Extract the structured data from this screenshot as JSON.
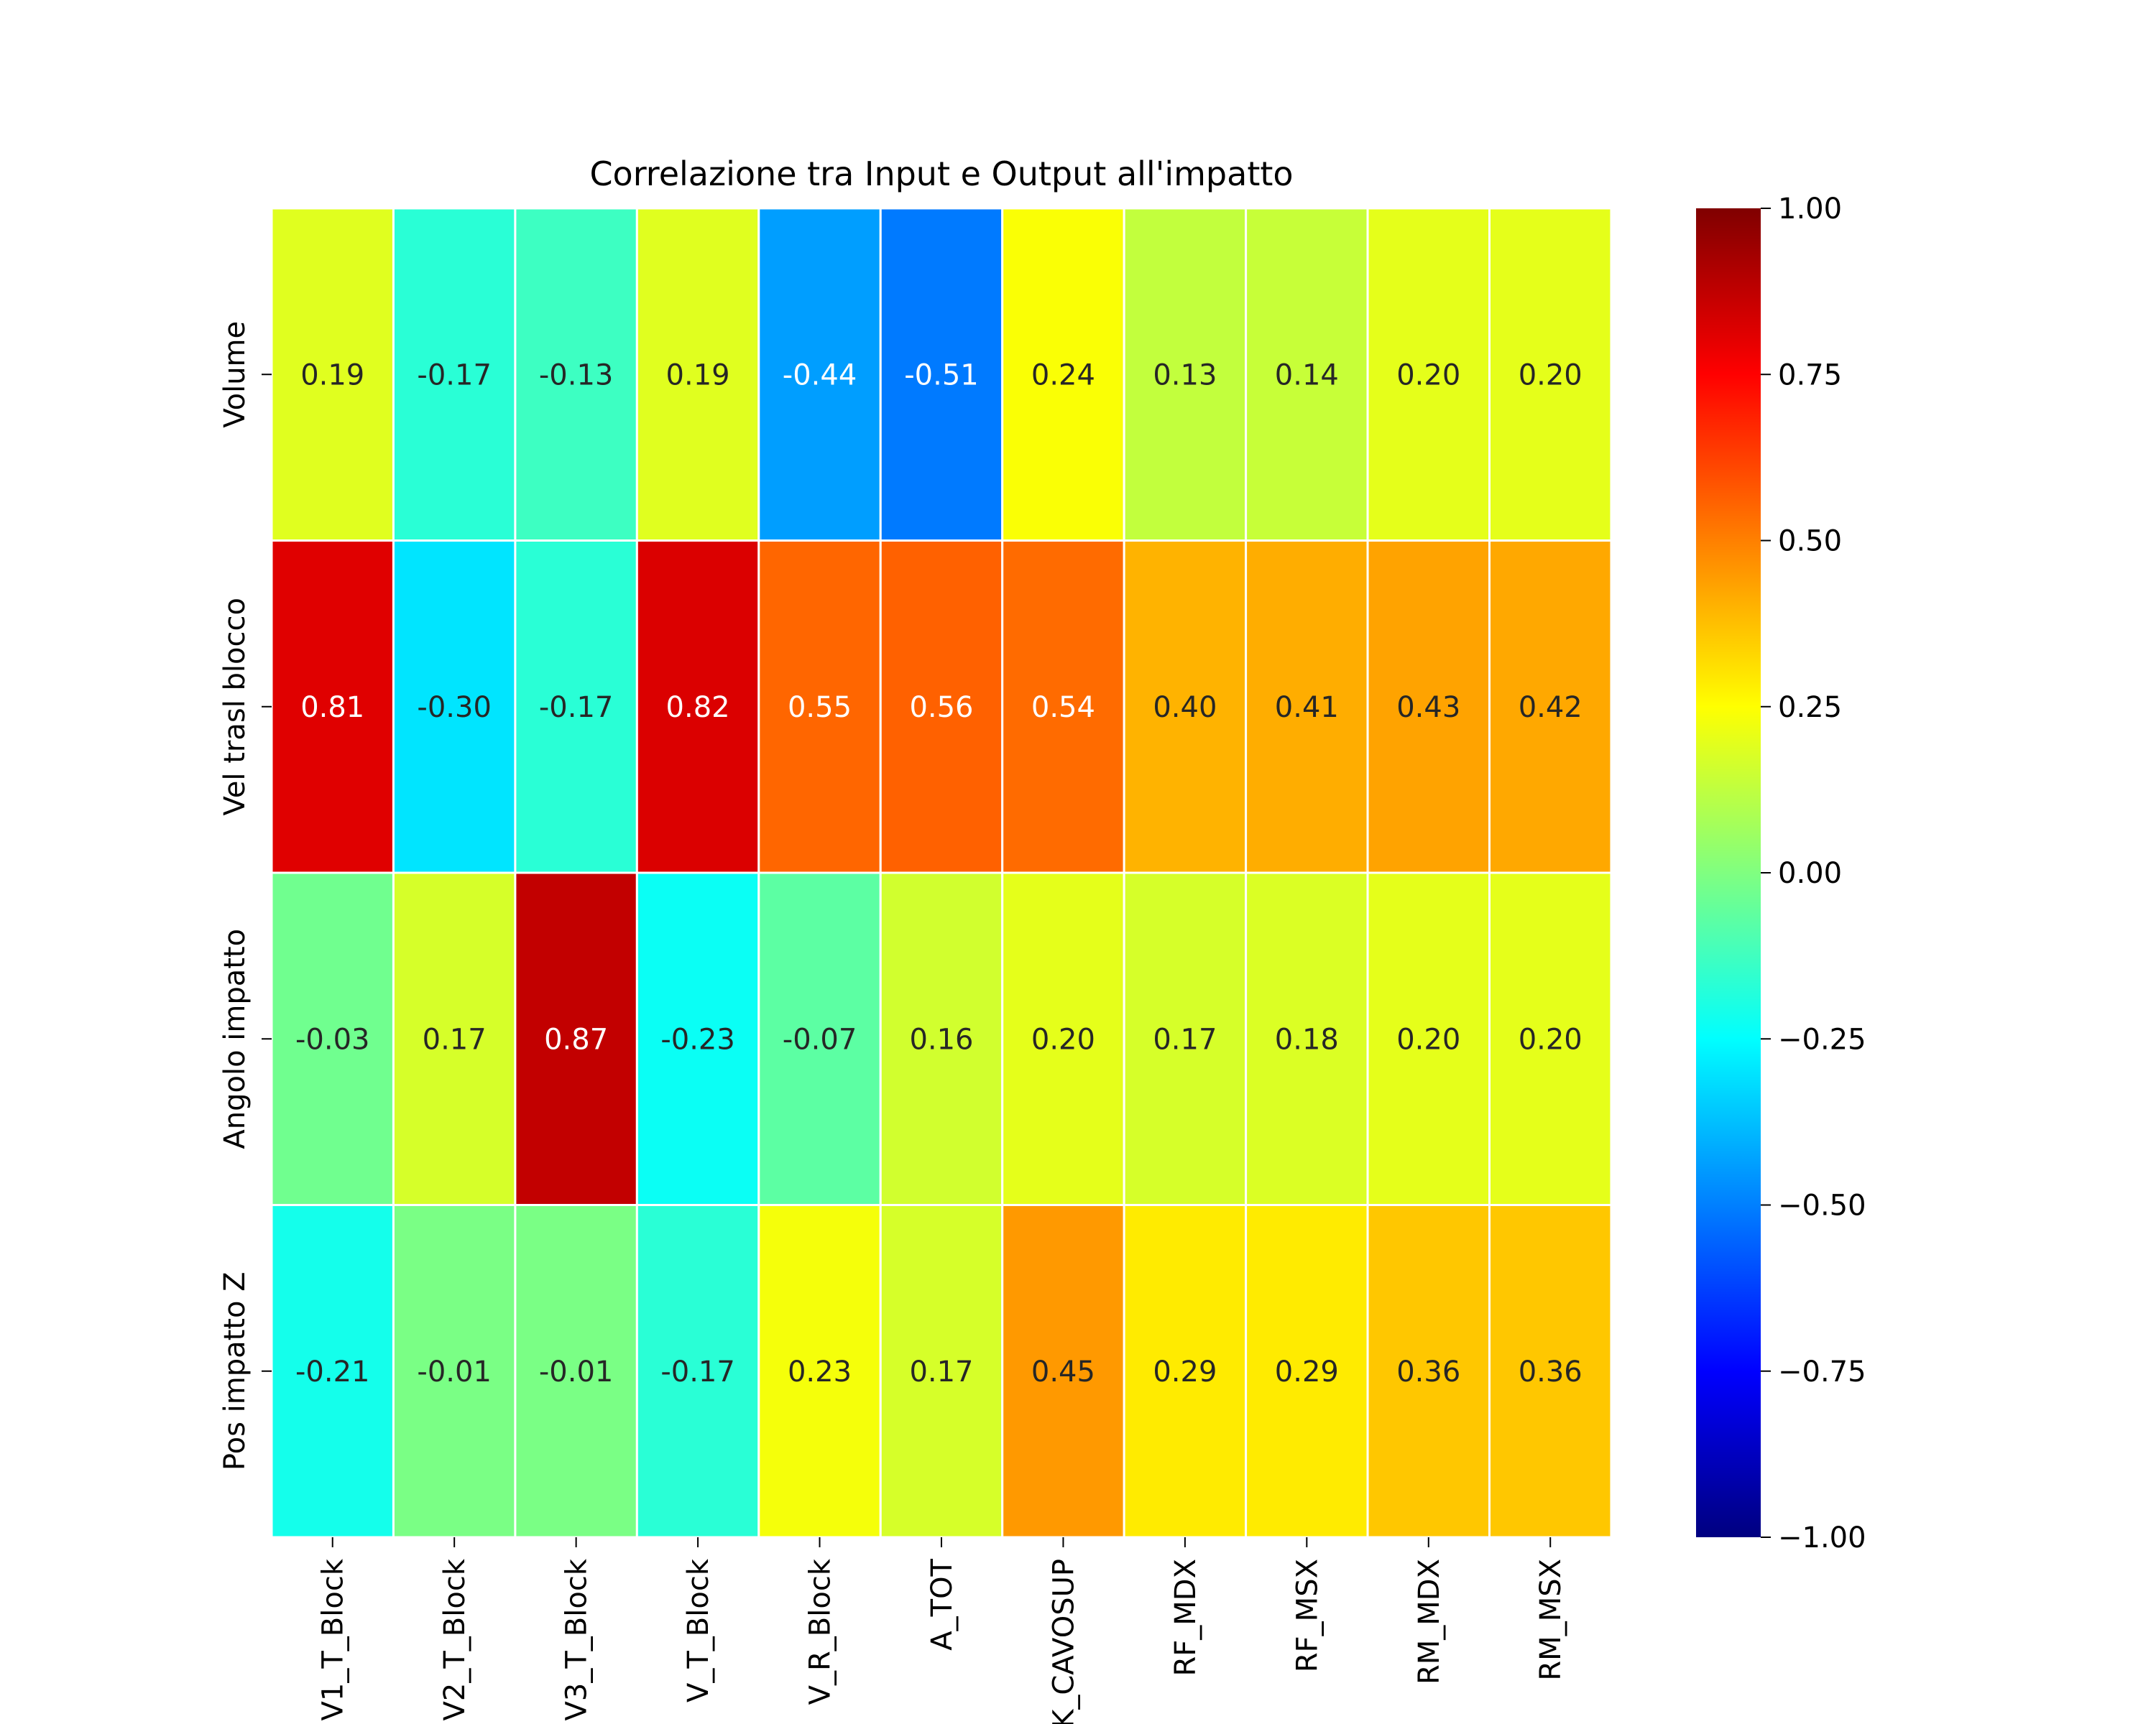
{
  "chart_data": {
    "type": "heatmap",
    "title": "Correlazione tra Input e Output all'impatto",
    "xlabel": "",
    "ylabel": "",
    "rows": [
      "Volume",
      "Vel trasl blocco",
      "Angolo impatto",
      "Pos impatto Z"
    ],
    "columns": [
      "V1_T_Block",
      "V2_T_Block",
      "V3_T_Block",
      "V_T_Block",
      "V_R_Block",
      "A_TOT",
      "K_CAVOSUP",
      "RF_MDX",
      "RF_MSX",
      "RM_MDX",
      "RM_MSX"
    ],
    "values": [
      [
        0.19,
        -0.17,
        -0.13,
        0.19,
        -0.44,
        -0.51,
        0.24,
        0.13,
        0.14,
        0.2,
        0.2
      ],
      [
        0.81,
        -0.3,
        -0.17,
        0.82,
        0.55,
        0.56,
        0.54,
        0.4,
        0.41,
        0.43,
        0.42
      ],
      [
        -0.03,
        0.17,
        0.87,
        -0.23,
        -0.07,
        0.16,
        0.2,
        0.17,
        0.18,
        0.2,
        0.2
      ],
      [
        -0.21,
        -0.01,
        -0.01,
        -0.17,
        0.23,
        0.17,
        0.45,
        0.29,
        0.29,
        0.36,
        0.36
      ]
    ],
    "value_format": "2 decimals",
    "colormap": "jet",
    "vmin": -1.0,
    "vmax": 1.0,
    "colorbar_ticks": [
      "1.00",
      "0.75",
      "0.50",
      "0.25",
      "0.00",
      "−0.25",
      "−0.50",
      "−0.75",
      "−1.00"
    ],
    "colorbar_tick_values": [
      1.0,
      0.75,
      0.5,
      0.25,
      0.0,
      -0.25,
      -0.5,
      -0.75,
      -1.0
    ],
    "cell_border_color": "#ffffff",
    "grid": false,
    "legend": "colorbar-right"
  }
}
